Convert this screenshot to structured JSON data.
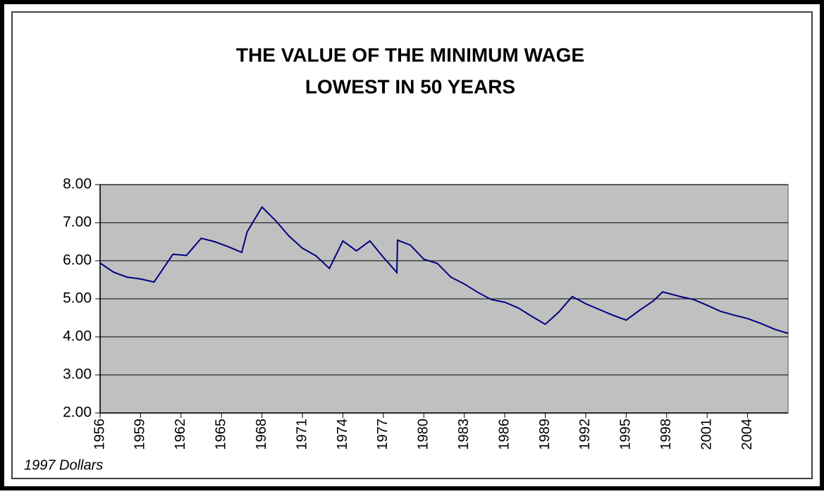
{
  "chart_data": {
    "type": "line",
    "title": [
      "THE VALUE OF THE MINIMUM WAGE",
      "LOWEST IN 50 YEARS"
    ],
    "annotation": "1997 Dollars",
    "x": [
      1956,
      1957,
      1958,
      1959,
      1960,
      1961.4,
      1962.4,
      1963.5,
      1964.5,
      1965.5,
      1966.5,
      1966.9,
      1968,
      1969,
      1970,
      1971,
      1972,
      1973,
      1974,
      1975,
      1976,
      1977,
      1978,
      1978.05,
      1979,
      1980,
      1981,
      1982,
      1983,
      1984,
      1985,
      1986,
      1987,
      1988,
      1989,
      1990,
      1991,
      1992,
      1993,
      1994,
      1995,
      1996,
      1997,
      1997.7,
      1999,
      2000,
      2001,
      2002,
      2003,
      2004,
      2005,
      2006,
      2007
    ],
    "series": [
      {
        "color": "#000080",
        "values": [
          5.94,
          5.7,
          5.57,
          5.52,
          5.44,
          6.17,
          6.14,
          6.59,
          6.5,
          6.37,
          6.22,
          6.76,
          7.41,
          7.06,
          6.65,
          6.33,
          6.13,
          5.8,
          6.52,
          6.26,
          6.52,
          6.09,
          5.69,
          6.54,
          6.41,
          6.04,
          5.93,
          5.57,
          5.39,
          5.17,
          4.98,
          4.91,
          4.76,
          4.54,
          4.33,
          4.65,
          5.06,
          4.87,
          4.72,
          4.57,
          4.44,
          4.7,
          4.94,
          5.18,
          5.06,
          4.98,
          4.83,
          4.67,
          4.57,
          4.48,
          4.35,
          4.2,
          4.09
        ]
      }
    ],
    "xlim": [
      1956,
      2007
    ],
    "xticks": [
      1956,
      1959,
      1962,
      1965,
      1968,
      1971,
      1974,
      1977,
      1980,
      1983,
      1986,
      1989,
      1992,
      1995,
      1998,
      2001,
      2004
    ],
    "ylim": [
      2,
      8
    ],
    "yticks": [
      {
        "value": 2,
        "label": "2.00"
      },
      {
        "value": 3,
        "label": "3.00"
      },
      {
        "value": 4,
        "label": "4.00"
      },
      {
        "value": 5,
        "label": "5.00"
      },
      {
        "value": 6,
        "label": "6.00"
      },
      {
        "value": 7,
        "label": "7.00"
      },
      {
        "value": 8,
        "label": "8.00"
      }
    ],
    "grid": true,
    "plot_background": "#c0c0c0"
  }
}
